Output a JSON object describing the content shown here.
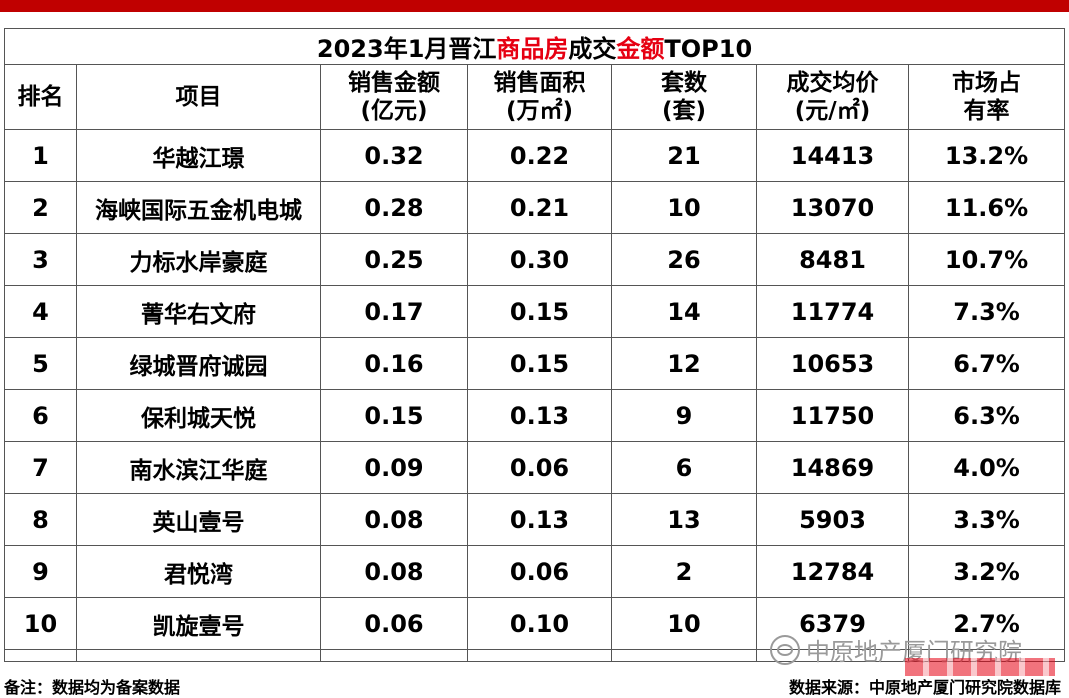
{
  "title": {
    "part1": "2023年1月晋江",
    "part2": "商品房",
    "part3": "成交",
    "part4": "金额",
    "part5": "TOP10"
  },
  "headers": [
    {
      "line1": "排名",
      "line2": ""
    },
    {
      "line1": "项目",
      "line2": ""
    },
    {
      "line1": "销售金额",
      "line2": "(亿元)"
    },
    {
      "line1": "销售面积",
      "line2": "(万㎡)"
    },
    {
      "line1": "套数",
      "line2": "(套)"
    },
    {
      "line1": "成交均价",
      "line2": "(元/㎡)"
    },
    {
      "line1": "市场占",
      "line2": "有率"
    }
  ],
  "rows": [
    {
      "rank": "1",
      "project": "华越江璟",
      "amount": "0.32",
      "area": "0.22",
      "units": "21",
      "price": "14413",
      "share": "13.2%"
    },
    {
      "rank": "2",
      "project": "海峡国际五金机电城",
      "amount": "0.28",
      "area": "0.21",
      "units": "10",
      "price": "13070",
      "share": "11.6%"
    },
    {
      "rank": "3",
      "project": "力标水岸豪庭",
      "amount": "0.25",
      "area": "0.30",
      "units": "26",
      "price": "8481",
      "share": "10.7%"
    },
    {
      "rank": "4",
      "project": "菁华右文府",
      "amount": "0.17",
      "area": "0.15",
      "units": "14",
      "price": "11774",
      "share": "7.3%"
    },
    {
      "rank": "5",
      "project": "绿城晋府诚园",
      "amount": "0.16",
      "area": "0.15",
      "units": "12",
      "price": "10653",
      "share": "6.7%"
    },
    {
      "rank": "6",
      "project": "保利城天悦",
      "amount": "0.15",
      "area": "0.13",
      "units": "9",
      "price": "11750",
      "share": "6.3%"
    },
    {
      "rank": "7",
      "project": "南水滨江华庭",
      "amount": "0.09",
      "area": "0.06",
      "units": "6",
      "price": "14869",
      "share": "4.0%"
    },
    {
      "rank": "8",
      "project": "英山壹号",
      "amount": "0.08",
      "area": "0.13",
      "units": "13",
      "price": "5903",
      "share": "3.3%"
    },
    {
      "rank": "9",
      "project": "君悦湾",
      "amount": "0.08",
      "area": "0.06",
      "units": "2",
      "price": "12784",
      "share": "3.2%"
    },
    {
      "rank": "10",
      "project": "凯旋壹号",
      "amount": "0.06",
      "area": "0.10",
      "units": "10",
      "price": "6379",
      "share": "2.7%"
    }
  ],
  "footer": {
    "note": "备注：数据均为备案数据",
    "source": "数据来源：中原地产厦门研究院数据库"
  },
  "watermark": {
    "text": "中原地产厦门研究院",
    "icon": "wechat-icon"
  },
  "colors": {
    "accent_red": "#e60012",
    "top_bar": "#c00000"
  }
}
